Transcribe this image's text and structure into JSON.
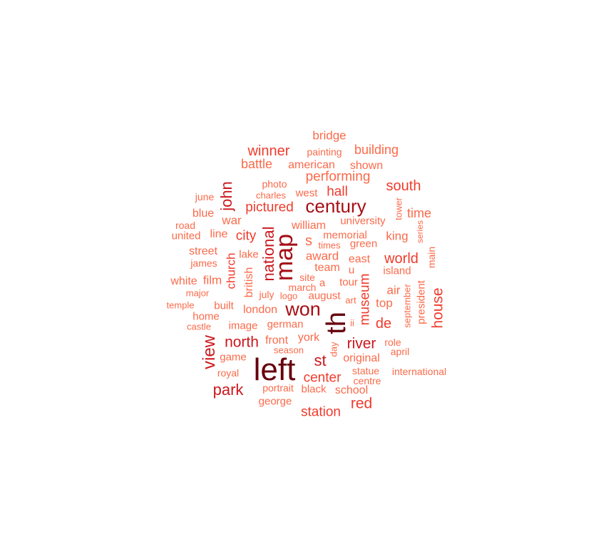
{
  "palette": {
    "t1": "#67000d",
    "t2": "#a50f15",
    "t3": "#cb181d",
    "t4": "#ef3b2c",
    "t5": "#fb6a4a"
  },
  "words": [
    {
      "text": "left",
      "tier": 1
    },
    {
      "text": "th",
      "tier": 1
    },
    {
      "text": "map",
      "tier": 2
    },
    {
      "text": "won",
      "tier": 2
    },
    {
      "text": "century",
      "tier": 2
    },
    {
      "text": "view",
      "tier": 3
    },
    {
      "text": "national",
      "tier": 3
    },
    {
      "text": "john",
      "tier": 3
    },
    {
      "text": "park",
      "tier": 3
    },
    {
      "text": "north",
      "tier": 3
    },
    {
      "text": "st",
      "tier": 3
    },
    {
      "text": "river",
      "tier": 3
    },
    {
      "text": "red",
      "tier": 4
    },
    {
      "text": "center",
      "tier": 4
    },
    {
      "text": "station",
      "tier": 4
    },
    {
      "text": "house",
      "tier": 4
    },
    {
      "text": "museum",
      "tier": 4
    },
    {
      "text": "world",
      "tier": 4
    },
    {
      "text": "south",
      "tier": 4
    },
    {
      "text": "pictured",
      "tier": 4
    },
    {
      "text": "winner",
      "tier": 4
    },
    {
      "text": "hall",
      "tier": 4
    },
    {
      "text": "city",
      "tier": 4
    },
    {
      "text": "church",
      "tier": 4
    },
    {
      "text": "de",
      "tier": 4
    },
    {
      "text": "performing",
      "tier": 5
    },
    {
      "text": "building",
      "tier": 5
    },
    {
      "text": "battle",
      "tier": 5
    },
    {
      "text": "time",
      "tier": 5
    },
    {
      "text": "s",
      "tier": 5
    },
    {
      "text": "bridge",
      "tier": 5
    },
    {
      "text": "american",
      "tier": 5
    },
    {
      "text": "shown",
      "tier": 5
    },
    {
      "text": "painting",
      "tier": 5
    },
    {
      "text": "photo",
      "tier": 5
    },
    {
      "text": "west",
      "tier": 5
    },
    {
      "text": "charles",
      "tier": 5
    },
    {
      "text": "june",
      "tier": 5
    },
    {
      "text": "blue",
      "tier": 5
    },
    {
      "text": "road",
      "tier": 5
    },
    {
      "text": "united",
      "tier": 5
    },
    {
      "text": "line",
      "tier": 5
    },
    {
      "text": "war",
      "tier": 5
    },
    {
      "text": "william",
      "tier": 5
    },
    {
      "text": "university",
      "tier": 5
    },
    {
      "text": "tower",
      "tier": 5
    },
    {
      "text": "king",
      "tier": 5
    },
    {
      "text": "series",
      "tier": 5
    },
    {
      "text": "memorial",
      "tier": 5
    },
    {
      "text": "times",
      "tier": 5
    },
    {
      "text": "green",
      "tier": 5
    },
    {
      "text": "street",
      "tier": 5
    },
    {
      "text": "lake",
      "tier": 5
    },
    {
      "text": "james",
      "tier": 5
    },
    {
      "text": "award",
      "tier": 5
    },
    {
      "text": "east",
      "tier": 5
    },
    {
      "text": "main",
      "tier": 5
    },
    {
      "text": "team",
      "tier": 5
    },
    {
      "text": "u",
      "tier": 5
    },
    {
      "text": "island",
      "tier": 5
    },
    {
      "text": "white",
      "tier": 5
    },
    {
      "text": "film",
      "tier": 5
    },
    {
      "text": "british",
      "tier": 5
    },
    {
      "text": "site",
      "tier": 5
    },
    {
      "text": "a",
      "tier": 5
    },
    {
      "text": "tour",
      "tier": 5
    },
    {
      "text": "major",
      "tier": 5
    },
    {
      "text": "march",
      "tier": 5
    },
    {
      "text": "air",
      "tier": 5
    },
    {
      "text": "president",
      "tier": 5
    },
    {
      "text": "temple",
      "tier": 5
    },
    {
      "text": "july",
      "tier": 5
    },
    {
      "text": "logo",
      "tier": 5
    },
    {
      "text": "august",
      "tier": 5
    },
    {
      "text": "art",
      "tier": 5
    },
    {
      "text": "top",
      "tier": 5
    },
    {
      "text": "september",
      "tier": 5
    },
    {
      "text": "built",
      "tier": 5
    },
    {
      "text": "london",
      "tier": 5
    },
    {
      "text": "home",
      "tier": 5
    },
    {
      "text": "castle",
      "tier": 5
    },
    {
      "text": "image",
      "tier": 5
    },
    {
      "text": "german",
      "tier": 5
    },
    {
      "text": "ii",
      "tier": 5
    },
    {
      "text": "front",
      "tier": 5
    },
    {
      "text": "york",
      "tier": 5
    },
    {
      "text": "day",
      "tier": 5
    },
    {
      "text": "role",
      "tier": 5
    },
    {
      "text": "april",
      "tier": 5
    },
    {
      "text": "season",
      "tier": 5
    },
    {
      "text": "game",
      "tier": 5
    },
    {
      "text": "original",
      "tier": 5
    },
    {
      "text": "royal",
      "tier": 5
    },
    {
      "text": "statue",
      "tier": 5
    },
    {
      "text": "international",
      "tier": 5
    },
    {
      "text": "centre",
      "tier": 5
    },
    {
      "text": "portrait",
      "tier": 5
    },
    {
      "text": "black",
      "tier": 5
    },
    {
      "text": "school",
      "tier": 5
    },
    {
      "text": "george",
      "tier": 5
    }
  ]
}
